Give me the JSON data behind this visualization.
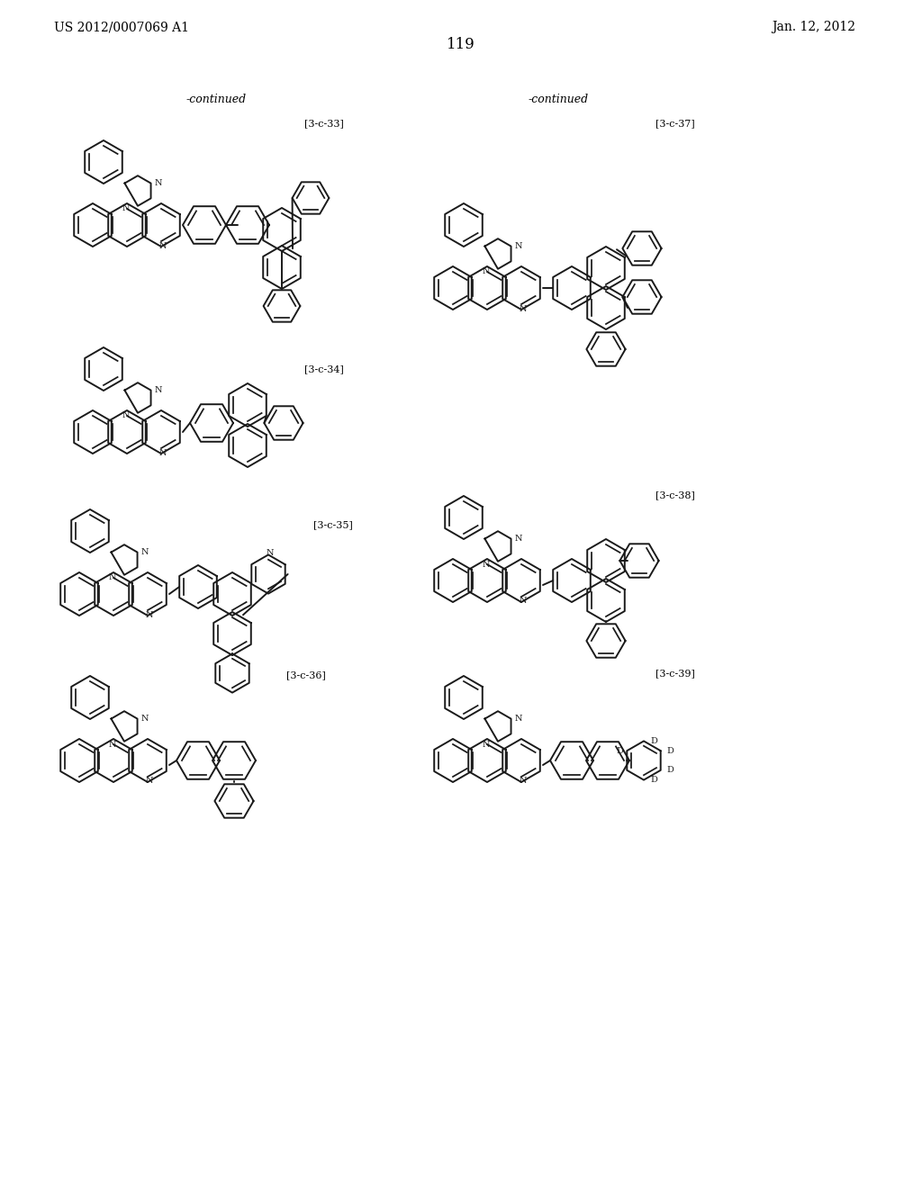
{
  "bg_color": "#ffffff",
  "patent_number": "US 2012/0007069 A1",
  "patent_date": "Jan. 12, 2012",
  "page_number": "119",
  "continued_left": "-continued",
  "continued_right": "-continued",
  "labels": [
    "[3-c-33]",
    "[3-c-34]",
    "[3-c-35]",
    "[3-c-36]",
    "[3-c-37]",
    "[3-c-38]",
    "[3-c-39]"
  ],
  "font_color": "#000000",
  "line_color": "#1a1a1a",
  "line_width": 1.4
}
